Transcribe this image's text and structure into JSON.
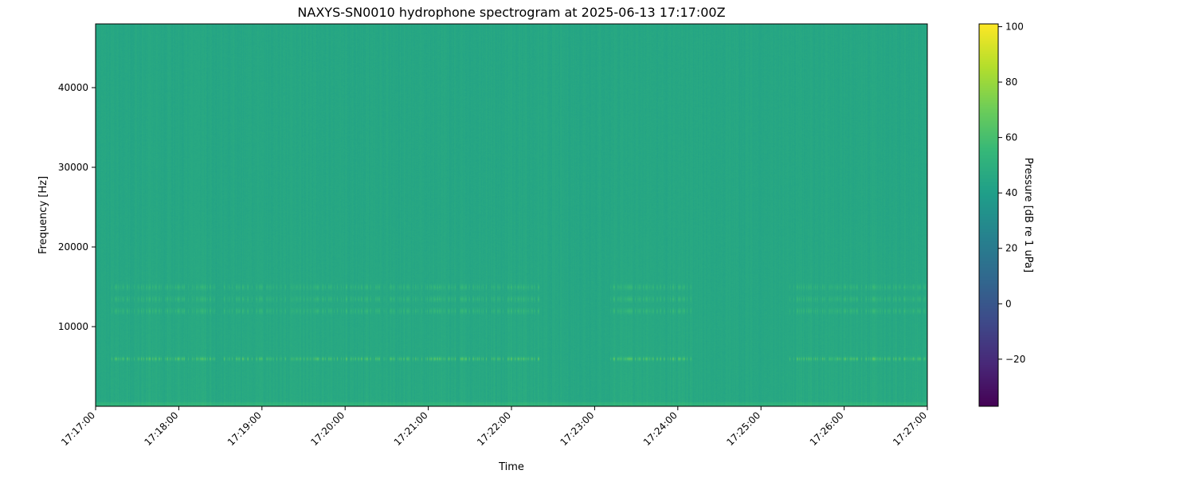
{
  "chart_data": {
    "type": "heatmap",
    "title": "NAXYS-SN0010 hydrophone spectrogram at 2025-06-13 17:17:00Z",
    "xlabel": "Time",
    "ylabel": "Frequency [Hz]",
    "colorbar_label": "Pressure [dB re 1 uPa]",
    "colormap": "viridis",
    "xlim": [
      "17:17:00",
      "17:27:00"
    ],
    "ylim": [
      0,
      48000
    ],
    "clim": [
      -37,
      101
    ],
    "x_ticks": [
      "17:17:00",
      "17:18:00",
      "17:19:00",
      "17:20:00",
      "17:21:00",
      "17:22:00",
      "17:23:00",
      "17:24:00",
      "17:25:00",
      "17:26:00",
      "17:27:00"
    ],
    "y_ticks": [
      10000,
      20000,
      30000,
      40000
    ],
    "colorbar_ticks": [
      -20,
      0,
      20,
      40,
      60,
      80,
      100
    ],
    "background_level_db": 45,
    "tonal_bands_hz": [
      {
        "freq": 6000,
        "level_db": 65
      },
      {
        "freq": 12000,
        "level_db": 55
      },
      {
        "freq": 13500,
        "level_db": 55
      },
      {
        "freq": 15000,
        "level_db": 55
      }
    ],
    "active_intervals": [
      [
        "17:17:10",
        "17:22:20"
      ],
      [
        "17:23:10",
        "17:24:10"
      ],
      [
        "17:25:20",
        "17:27:00"
      ]
    ],
    "grid": false
  }
}
